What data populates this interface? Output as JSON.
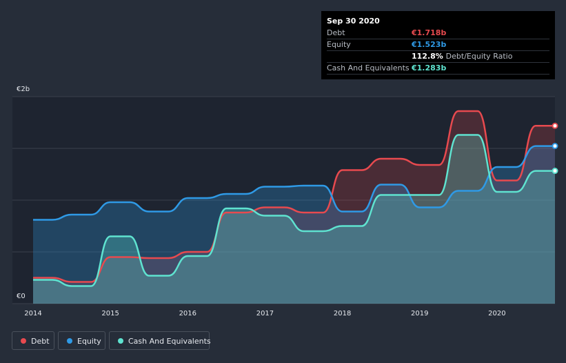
{
  "tooltip": {
    "date": "Sep 30 2020",
    "rows": [
      {
        "label": "Debt",
        "value": "€1.718b",
        "color": "#e84a4f",
        "extra": ""
      },
      {
        "label": "Equity",
        "value": "€1.523b",
        "color": "#2f9ae6",
        "extra": ""
      },
      {
        "label": "",
        "value": "112.8%",
        "color": "#ffffff",
        "extra": "Debt/Equity Ratio"
      },
      {
        "label": "Cash And Equivalents",
        "value": "€1.283b",
        "color": "#5fe3d0",
        "extra": ""
      }
    ]
  },
  "legend": [
    {
      "label": "Debt",
      "color": "#e84a4f"
    },
    {
      "label": "Equity",
      "color": "#2f9ae6"
    },
    {
      "label": "Cash And Equivalents",
      "color": "#5fe3d0"
    }
  ],
  "chart_data": {
    "type": "area",
    "y_tick_labels": {
      "top": "€2b",
      "bottom": "€0"
    },
    "ylim": [
      0,
      2.0
    ],
    "xlim": [
      2014.0,
      2020.75
    ],
    "x_ticks": [
      "2014",
      "2015",
      "2016",
      "2017",
      "2018",
      "2019",
      "2020"
    ],
    "grid": true,
    "legend_position": "bottom-left",
    "series": [
      {
        "name": "Debt",
        "color": "#e84a4f",
        "points": [
          [
            2014.0,
            0.25
          ],
          [
            2014.25,
            0.25
          ],
          [
            2014.5,
            0.21
          ],
          [
            2014.75,
            0.21
          ],
          [
            2015.0,
            0.45
          ],
          [
            2015.25,
            0.45
          ],
          [
            2015.5,
            0.44
          ],
          [
            2015.75,
            0.44
          ],
          [
            2016.0,
            0.5
          ],
          [
            2016.25,
            0.5
          ],
          [
            2016.5,
            0.88
          ],
          [
            2016.75,
            0.88
          ],
          [
            2017.0,
            0.93
          ],
          [
            2017.25,
            0.93
          ],
          [
            2017.5,
            0.88
          ],
          [
            2017.75,
            0.88
          ],
          [
            2018.0,
            1.29
          ],
          [
            2018.25,
            1.29
          ],
          [
            2018.5,
            1.4
          ],
          [
            2018.75,
            1.4
          ],
          [
            2019.0,
            1.34
          ],
          [
            2019.25,
            1.34
          ],
          [
            2019.5,
            1.86
          ],
          [
            2019.75,
            1.86
          ],
          [
            2020.0,
            1.19
          ],
          [
            2020.25,
            1.19
          ],
          [
            2020.5,
            1.718
          ],
          [
            2020.75,
            1.718
          ]
        ]
      },
      {
        "name": "Equity",
        "color": "#2f9ae6",
        "points": [
          [
            2014.0,
            0.81
          ],
          [
            2014.25,
            0.81
          ],
          [
            2014.5,
            0.86
          ],
          [
            2014.75,
            0.86
          ],
          [
            2015.0,
            0.98
          ],
          [
            2015.25,
            0.98
          ],
          [
            2015.5,
            0.89
          ],
          [
            2015.75,
            0.89
          ],
          [
            2016.0,
            1.02
          ],
          [
            2016.25,
            1.02
          ],
          [
            2016.5,
            1.06
          ],
          [
            2016.75,
            1.06
          ],
          [
            2017.0,
            1.13
          ],
          [
            2017.25,
            1.13
          ],
          [
            2017.5,
            1.14
          ],
          [
            2017.75,
            1.14
          ],
          [
            2018.0,
            0.89
          ],
          [
            2018.25,
            0.89
          ],
          [
            2018.5,
            1.15
          ],
          [
            2018.75,
            1.15
          ],
          [
            2019.0,
            0.93
          ],
          [
            2019.25,
            0.93
          ],
          [
            2019.5,
            1.09
          ],
          [
            2019.75,
            1.09
          ],
          [
            2020.0,
            1.32
          ],
          [
            2020.25,
            1.32
          ],
          [
            2020.5,
            1.523
          ],
          [
            2020.75,
            1.523
          ]
        ]
      },
      {
        "name": "Cash And Equivalents",
        "color": "#5fe3d0",
        "points": [
          [
            2014.0,
            0.23
          ],
          [
            2014.25,
            0.23
          ],
          [
            2014.5,
            0.17
          ],
          [
            2014.75,
            0.17
          ],
          [
            2015.0,
            0.65
          ],
          [
            2015.25,
            0.65
          ],
          [
            2015.5,
            0.27
          ],
          [
            2015.75,
            0.27
          ],
          [
            2016.0,
            0.46
          ],
          [
            2016.25,
            0.46
          ],
          [
            2016.5,
            0.92
          ],
          [
            2016.75,
            0.92
          ],
          [
            2017.0,
            0.85
          ],
          [
            2017.25,
            0.85
          ],
          [
            2017.5,
            0.7
          ],
          [
            2017.75,
            0.7
          ],
          [
            2018.0,
            0.75
          ],
          [
            2018.25,
            0.75
          ],
          [
            2018.5,
            1.05
          ],
          [
            2018.75,
            1.05
          ],
          [
            2019.0,
            1.05
          ],
          [
            2019.25,
            1.05
          ],
          [
            2019.5,
            1.63
          ],
          [
            2019.75,
            1.63
          ],
          [
            2020.0,
            1.08
          ],
          [
            2020.25,
            1.08
          ],
          [
            2020.5,
            1.283
          ],
          [
            2020.75,
            1.283
          ]
        ]
      }
    ]
  }
}
